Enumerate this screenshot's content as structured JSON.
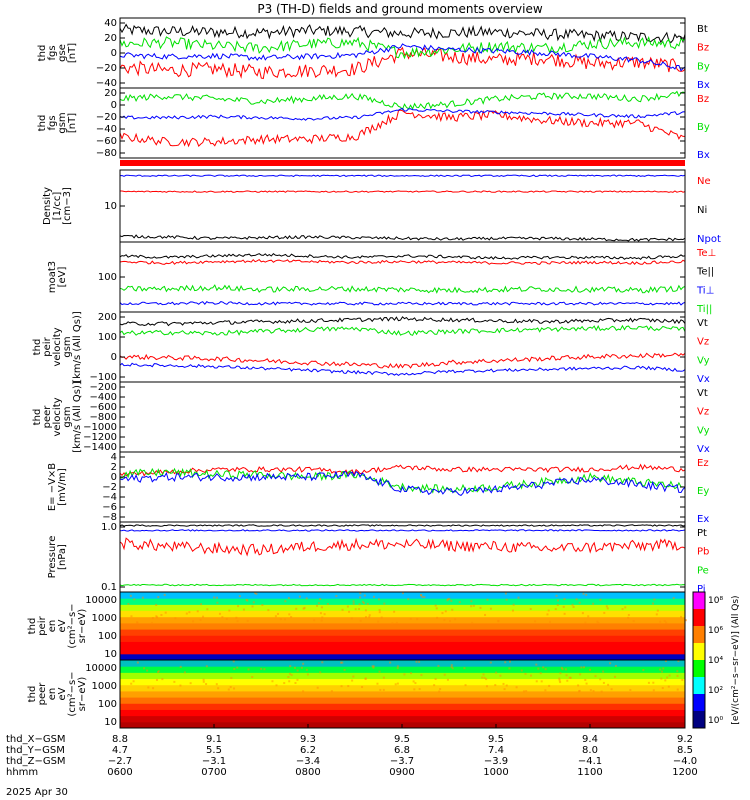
{
  "title": "P3 (TH-D) fields and ground moments overview",
  "date_label": "2025 Apr 30",
  "colors": {
    "black": "#000000",
    "red": "#ff0000",
    "green": "#00e000",
    "blue": "#0000ff",
    "cyan": "#00c8c8",
    "orange": "#ff8c00"
  },
  "chart_data": [
    {
      "id": "fgs_gse",
      "type": "line",
      "ylabel": [
        "thd",
        "fgs",
        "gse",
        "[nT]"
      ],
      "yticks": [
        "40",
        "20",
        "0",
        "−20",
        "−40"
      ],
      "ylim": [
        -45,
        55
      ],
      "legend_position": "right",
      "series": [
        {
          "name": "Bt",
          "color": "black",
          "base": 35,
          "amp": 8,
          "shape": [
            38,
            36,
            35,
            34,
            37,
            36,
            33,
            34,
            35,
            32,
            30,
            28,
            27
          ]
        },
        {
          "name": "Bz",
          "color": "red",
          "base": -10,
          "amp": 10,
          "shape": [
            -15,
            -20,
            -18,
            -22,
            -20,
            -18,
            5,
            0,
            -5,
            -2,
            -10,
            -8,
            -15
          ]
        },
        {
          "name": "By",
          "color": "green",
          "base": 15,
          "amp": 8,
          "shape": [
            18,
            20,
            15,
            12,
            18,
            20,
            5,
            10,
            15,
            12,
            18,
            20,
            18
          ]
        },
        {
          "name": "Bx",
          "color": "blue",
          "base": 0,
          "amp": 4,
          "shape": [
            2,
            0,
            1,
            -2,
            0,
            2,
            15,
            10,
            8,
            5,
            0,
            -5,
            -18
          ]
        }
      ]
    },
    {
      "id": "fgs_gsm",
      "type": "line",
      "ylabel": [
        "thd",
        "fgs",
        "gsm",
        "[nT]"
      ],
      "yticks": [
        "20",
        "0",
        "−20",
        "−40",
        "−60",
        "−80"
      ],
      "ylim": [
        -95,
        35
      ],
      "legend_position": "right",
      "series": [
        {
          "name": "Bz",
          "color": "red",
          "base": -55,
          "amp": 8,
          "shape": [
            -55,
            -65,
            -65,
            -60,
            -60,
            -55,
            -10,
            -20,
            -15,
            -25,
            -30,
            -30,
            -60
          ]
        },
        {
          "name": "By",
          "color": "green",
          "base": 15,
          "amp": 6,
          "shape": [
            15,
            20,
            15,
            10,
            15,
            20,
            0,
            5,
            15,
            20,
            20,
            15,
            25
          ]
        },
        {
          "name": "Bx",
          "color": "blue",
          "base": -20,
          "amp": 3,
          "shape": [
            -20,
            -20,
            -18,
            -20,
            -22,
            -20,
            -5,
            -8,
            -10,
            -12,
            -15,
            -18,
            -10
          ]
        }
      ]
    },
    {
      "id": "density",
      "type": "line",
      "ylabel": [
        "Density",
        "[1/cc]",
        "[cm−3]"
      ],
      "yticks": [
        "10"
      ],
      "ylim": [
        0,
        100
      ],
      "log_labels": true,
      "legend_position": "right",
      "series": [
        {
          "name": "Ne",
          "color": "red",
          "base": 70,
          "amp": 1,
          "shape": [
            70,
            70,
            70,
            70,
            70,
            70,
            70,
            70,
            70,
            70,
            70,
            70,
            70
          ]
        },
        {
          "name": "Ni",
          "color": "black",
          "base": 7,
          "amp": 2,
          "shape": [
            8,
            7,
            5,
            6,
            7,
            6,
            5,
            4,
            5,
            5,
            4,
            3,
            4
          ]
        },
        {
          "name": "Npot",
          "color": "blue",
          "base": 92,
          "amp": 1,
          "shape": [
            92,
            92,
            92,
            92,
            92,
            92,
            92,
            92,
            92,
            92,
            92,
            92,
            92
          ]
        }
      ]
    },
    {
      "id": "temperature",
      "type": "line",
      "ylabel": [
        "moat3",
        "[eV]"
      ],
      "yticks": [
        "100"
      ],
      "ylim": [
        0,
        100
      ],
      "log_labels": true,
      "legend_position": "right",
      "series": [
        {
          "name": "Te⊥",
          "color": "red",
          "base": 72,
          "amp": 2,
          "shape": [
            72,
            70,
            72,
            73,
            72,
            71,
            72,
            71,
            70,
            70,
            71,
            70,
            72
          ]
        },
        {
          "name": "Te||",
          "color": "black",
          "base": 80,
          "amp": 2,
          "shape": [
            80,
            78,
            80,
            82,
            80,
            78,
            80,
            79,
            77,
            78,
            78,
            77,
            80
          ]
        },
        {
          "name": "Ti⊥",
          "color": "blue",
          "base": 12,
          "amp": 2,
          "shape": [
            12,
            12,
            13,
            12,
            12,
            12,
            12,
            12,
            12,
            12,
            12,
            12,
            12
          ]
        },
        {
          "name": "Ti||",
          "color": "green",
          "base": 33,
          "amp": 4,
          "shape": [
            33,
            33,
            35,
            32,
            33,
            33,
            32,
            31,
            32,
            33,
            32,
            31,
            34
          ]
        }
      ]
    },
    {
      "id": "peir_velocity",
      "type": "line",
      "ylabel": [
        "thd",
        "peir",
        "velocity",
        "gsm",
        "[km/s (All Qs)]"
      ],
      "yticks": [
        "200",
        "100",
        "0",
        "−100"
      ],
      "ylim": [
        -150,
        210
      ],
      "legend_position": "right",
      "series": [
        {
          "name": "Vt",
          "color": "black",
          "base": 150,
          "amp": 10,
          "shape": [
            150,
            150,
            155,
            160,
            165,
            170,
            175,
            170,
            165,
            160,
            165,
            170,
            160
          ]
        },
        {
          "name": "Vz",
          "color": "red",
          "base": -30,
          "amp": 12,
          "shape": [
            -20,
            -25,
            -30,
            -40,
            -50,
            -60,
            -70,
            -50,
            -40,
            -30,
            -20,
            -15,
            -10
          ]
        },
        {
          "name": "Vy",
          "color": "green",
          "base": 100,
          "amp": 12,
          "shape": [
            100,
            105,
            100,
            110,
            120,
            125,
            100,
            110,
            115,
            120,
            125,
            130,
            120
          ]
        },
        {
          "name": "Vx",
          "color": "blue",
          "base": -60,
          "amp": 8,
          "shape": [
            -60,
            -65,
            -70,
            -80,
            -90,
            -100,
            -110,
            -95,
            -90,
            -85,
            -80,
            -75,
            -90
          ]
        }
      ]
    },
    {
      "id": "peer_velocity",
      "type": "line",
      "ylabel": [
        "thd",
        "peer",
        "velocity",
        "gsm",
        "[km/s (All Qs)]"
      ],
      "yticks": [
        "−200",
        "−400",
        "−600",
        "−800",
        "−1000",
        "−1200",
        "−1400"
      ],
      "ylim": [
        -1500,
        0
      ],
      "legend_position": "right",
      "series": [
        {
          "name": "Vt",
          "color": "black",
          "empty": true
        },
        {
          "name": "Vz",
          "color": "red",
          "empty": true
        },
        {
          "name": "Vy",
          "color": "green",
          "empty": true
        },
        {
          "name": "Vx",
          "color": "blue",
          "empty": true
        }
      ]
    },
    {
      "id": "efield",
      "type": "line",
      "ylabel": [
        "E= −V×B",
        "[mV/m]"
      ],
      "yticks": [
        "4",
        "2",
        "0",
        "−2",
        "−4",
        "−6",
        "−8"
      ],
      "ylim": [
        -9,
        5
      ],
      "legend_position": "right",
      "series": [
        {
          "name": "Ez",
          "color": "red",
          "base": 1.5,
          "amp": 0.5,
          "shape": [
            0.5,
            1,
            1.5,
            1.5,
            1.5,
            1,
            2,
            1.5,
            1.5,
            1.5,
            1.5,
            2,
            1.5
          ]
        },
        {
          "name": "Ey",
          "color": "green",
          "base": 0,
          "amp": 0.8,
          "shape": [
            0.5,
            1,
            0.5,
            0.5,
            0,
            0.5,
            -2,
            -2.5,
            -2,
            -1,
            0,
            -1,
            -2
          ]
        },
        {
          "name": "Ex",
          "color": "blue",
          "base": 0,
          "amp": 0.8,
          "shape": [
            -0.5,
            0,
            0,
            0,
            0,
            0.5,
            -2.5,
            -3,
            -2.5,
            -1.5,
            -0.5,
            -1.5,
            -2.5
          ]
        }
      ]
    },
    {
      "id": "pressure",
      "type": "line",
      "ylabel": [
        "Pressure",
        "[nPa]"
      ],
      "yticks": [
        "1.0",
        "0.1"
      ],
      "ylim": [
        0,
        100
      ],
      "log_labels": true,
      "legend_position": "right",
      "series": [
        {
          "name": "Pt",
          "color": "black",
          "base": 95,
          "amp": 1,
          "shape": [
            95,
            95,
            95,
            95,
            95,
            95,
            95,
            95,
            95,
            95,
            95,
            95,
            95
          ]
        },
        {
          "name": "Pb",
          "color": "red",
          "base": 70,
          "amp": 8,
          "shape": [
            70,
            65,
            62,
            60,
            65,
            68,
            68,
            66,
            65,
            62,
            64,
            66,
            68
          ]
        },
        {
          "name": "Pe",
          "color": "green",
          "base": 10,
          "amp": 1,
          "shape": [
            10,
            10,
            10,
            10,
            10,
            10,
            10,
            10,
            10,
            10,
            10,
            10,
            10
          ]
        },
        {
          "name": "Pi",
          "color": "blue",
          "base": 88,
          "amp": 1,
          "shape": [
            88,
            88,
            88,
            88,
            88,
            88,
            88,
            88,
            88,
            88,
            88,
            88,
            88
          ]
        }
      ]
    },
    {
      "id": "peir_spec",
      "type": "heatmap",
      "ylabel": [
        "thd",
        "peir",
        "en",
        "eV",
        "(cm²−s−",
        "sr−eV)"
      ],
      "yticks": [
        "10000",
        "1000",
        "100",
        "10"
      ],
      "bands": [
        "#0000c0",
        "#ff0000",
        "#ff0000",
        "#ff2000",
        "#ff4000",
        "#ff8000",
        "#ffa000",
        "#ffe000",
        "#c0ff00",
        "#00ff80",
        "#00c0ff"
      ]
    },
    {
      "id": "peer_spec",
      "type": "heatmap",
      "ylabel": [
        "thd",
        "peer",
        "en",
        "eV",
        "(cm²−s−",
        "sr−eV)"
      ],
      "yticks": [
        "10000",
        "1000",
        "100",
        "10"
      ],
      "bands": [
        "#b40000",
        "#d00000",
        "#ff0000",
        "#ff3000",
        "#ff7000",
        "#ffa000",
        "#ffd000",
        "#ffff00",
        "#a0ff00",
        "#00ff40",
        "#00c0c0"
      ]
    }
  ],
  "colorbar": {
    "labels": [
      "10⁸",
      "10⁶",
      "10⁴",
      "10²",
      "10⁰"
    ],
    "unit": "[eV/(cm²−s−sr−eV)] (All Qs)"
  },
  "ephemeris": {
    "rows": [
      {
        "label": "thd_X−GSM",
        "values": [
          "8.8",
          "9.1",
          "9.3",
          "9.5",
          "9.5",
          "9.4",
          "9.2"
        ]
      },
      {
        "label": "thd_Y−GSM",
        "values": [
          "4.7",
          "5.5",
          "6.2",
          "6.8",
          "7.4",
          "8.0",
          "8.5"
        ]
      },
      {
        "label": "thd_Z−GSM",
        "values": [
          "−2.7",
          "−3.1",
          "−3.4",
          "−3.7",
          "−3.9",
          "−4.1",
          "−4.0"
        ]
      },
      {
        "label": "hhmm",
        "values": [
          "0600",
          "0700",
          "0800",
          "0900",
          "1000",
          "1100",
          "1200"
        ]
      }
    ]
  }
}
